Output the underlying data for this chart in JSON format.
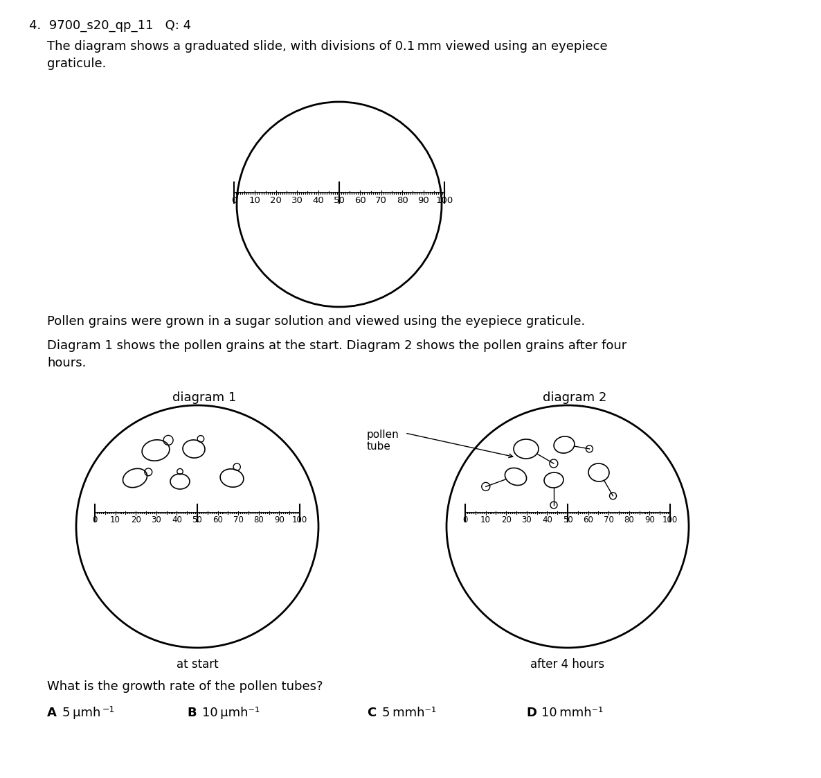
{
  "title_line1": "4.  9700_s20_qp_11   Q: 4",
  "para1": "The diagram shows a graduated slide, with divisions of 0.1 mm viewed using an eyepiece\ngraticule.",
  "para2": "Pollen grains were grown in a sugar solution and viewed using the eyepiece graticule.",
  "para3": "Diagram 1 shows the pollen grains at the start. Diagram 2 shows the pollen grains after four\nhours.",
  "diagram1_title": "diagram 1",
  "diagram2_title": "diagram 2",
  "label_at_start": "at start",
  "label_after": "after 4 hours",
  "label_pollen_tube": "pollen\ntube",
  "question": "What is the growth rate of the pollen tubes?",
  "optionA": "A   5 μmh",
  "optionA_sup": "−1",
  "optionB": "B   10 μmh⁻¹",
  "optionC": "C   5 mmh⁻¹",
  "optionD": "D   10 mmh⁻¹",
  "scale_labels": [
    "0",
    "10",
    "20",
    "30",
    "40",
    "50",
    "60",
    "70",
    "80",
    "90",
    "100"
  ],
  "bg_color": "#ffffff",
  "text_color": "#000000",
  "line_color": "#000000"
}
